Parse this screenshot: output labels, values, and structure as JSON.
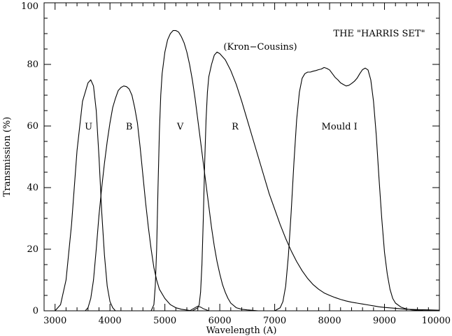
{
  "chart_data": {
    "type": "line",
    "title": "",
    "xlabel": "Wavelength (A)",
    "ylabel": "Transmission (%)",
    "xlim": [
      2800,
      10000
    ],
    "ylim": [
      0,
      100
    ],
    "x_ticks": [
      3000,
      4000,
      5000,
      6000,
      7000,
      8000,
      9000,
      10000
    ],
    "y_ticks": [
      0,
      20,
      40,
      60,
      80,
      100
    ],
    "grid": false,
    "annotations": [
      {
        "text": "THE \"HARRIS SET\""
      },
      {
        "text": "(Kron−Cousins)"
      }
    ],
    "series": [
      {
        "name": "U",
        "points": [
          [
            3000,
            0
          ],
          [
            3100,
            2
          ],
          [
            3200,
            10
          ],
          [
            3300,
            28
          ],
          [
            3400,
            52
          ],
          [
            3500,
            68
          ],
          [
            3600,
            74
          ],
          [
            3650,
            75
          ],
          [
            3700,
            73
          ],
          [
            3750,
            65
          ],
          [
            3800,
            50
          ],
          [
            3850,
            32
          ],
          [
            3900,
            18
          ],
          [
            3950,
            8
          ],
          [
            4000,
            3
          ],
          [
            4050,
            1
          ],
          [
            4100,
            0
          ]
        ]
      },
      {
        "name": "B",
        "points": [
          [
            3550,
            0
          ],
          [
            3600,
            1
          ],
          [
            3650,
            4
          ],
          [
            3700,
            10
          ],
          [
            3750,
            20
          ],
          [
            3800,
            31
          ],
          [
            3850,
            40
          ],
          [
            3900,
            48
          ],
          [
            3950,
            55
          ],
          [
            4000,
            61
          ],
          [
            4050,
            66
          ],
          [
            4100,
            69
          ],
          [
            4150,
            71.5
          ],
          [
            4200,
            72.5
          ],
          [
            4250,
            73
          ],
          [
            4300,
            72.8
          ],
          [
            4350,
            72
          ],
          [
            4400,
            70
          ],
          [
            4450,
            66
          ],
          [
            4500,
            61
          ],
          [
            4550,
            53
          ],
          [
            4600,
            44
          ],
          [
            4650,
            35
          ],
          [
            4700,
            27
          ],
          [
            4750,
            20
          ],
          [
            4800,
            14
          ],
          [
            4850,
            10
          ],
          [
            4900,
            7
          ],
          [
            5000,
            4
          ],
          [
            5100,
            2
          ],
          [
            5200,
            1
          ],
          [
            5300,
            0.5
          ],
          [
            5500,
            0
          ]
        ]
      },
      {
        "name": "V",
        "points": [
          [
            4750,
            0
          ],
          [
            4800,
            2
          ],
          [
            4825,
            8
          ],
          [
            4850,
            20
          ],
          [
            4875,
            40
          ],
          [
            4900,
            58
          ],
          [
            4925,
            70
          ],
          [
            4950,
            77
          ],
          [
            5000,
            84
          ],
          [
            5050,
            88
          ],
          [
            5100,
            90
          ],
          [
            5150,
            91
          ],
          [
            5200,
            91
          ],
          [
            5250,
            90.5
          ],
          [
            5300,
            89
          ],
          [
            5350,
            87
          ],
          [
            5400,
            84
          ],
          [
            5450,
            80
          ],
          [
            5500,
            75
          ],
          [
            5550,
            69
          ],
          [
            5600,
            62
          ],
          [
            5650,
            55
          ],
          [
            5700,
            48
          ],
          [
            5750,
            41
          ],
          [
            5800,
            34
          ],
          [
            5850,
            27
          ],
          [
            5900,
            21
          ],
          [
            5950,
            16
          ],
          [
            6000,
            12
          ],
          [
            6050,
            8.5
          ],
          [
            6100,
            6
          ],
          [
            6150,
            4
          ],
          [
            6200,
            2.5
          ],
          [
            6300,
            1
          ],
          [
            6400,
            0.5
          ],
          [
            6500,
            0.3
          ],
          [
            6700,
            0
          ]
        ]
      },
      {
        "name": "R",
        "points": [
          [
            5500,
            0
          ],
          [
            5550,
            0.5
          ],
          [
            5600,
            1
          ],
          [
            5625,
            2
          ],
          [
            5650,
            6
          ],
          [
            5675,
            15
          ],
          [
            5700,
            30
          ],
          [
            5725,
            48
          ],
          [
            5750,
            62
          ],
          [
            5775,
            71
          ],
          [
            5800,
            76
          ],
          [
            5850,
            80
          ],
          [
            5900,
            83
          ],
          [
            5950,
            84
          ],
          [
            6000,
            83.5
          ],
          [
            6100,
            81.5
          ],
          [
            6200,
            78
          ],
          [
            6300,
            73.5
          ],
          [
            6400,
            68
          ],
          [
            6500,
            62
          ],
          [
            6600,
            56
          ],
          [
            6700,
            50
          ],
          [
            6800,
            44
          ],
          [
            6900,
            38
          ],
          [
            7000,
            33
          ],
          [
            7100,
            28
          ],
          [
            7200,
            23.5
          ],
          [
            7300,
            19.5
          ],
          [
            7400,
            16
          ],
          [
            7500,
            13
          ],
          [
            7600,
            10.5
          ],
          [
            7700,
            8.5
          ],
          [
            7800,
            7
          ],
          [
            7900,
            5.8
          ],
          [
            8000,
            5
          ],
          [
            8100,
            4.3
          ],
          [
            8200,
            3.7
          ],
          [
            8300,
            3.2
          ],
          [
            8400,
            2.8
          ],
          [
            8500,
            2.5
          ],
          [
            8600,
            2.2
          ],
          [
            8700,
            1.9
          ],
          [
            8800,
            1.6
          ],
          [
            8900,
            1.3
          ],
          [
            9000,
            1.1
          ],
          [
            9200,
            0.8
          ],
          [
            9400,
            0.5
          ],
          [
            9600,
            0.4
          ],
          [
            9800,
            0.3
          ],
          [
            10000,
            0.2
          ]
        ]
      },
      {
        "name": "Mould I",
        "points": [
          [
            7000,
            0
          ],
          [
            7100,
            1
          ],
          [
            7150,
            3
          ],
          [
            7200,
            8
          ],
          [
            7250,
            18
          ],
          [
            7300,
            32
          ],
          [
            7350,
            48
          ],
          [
            7400,
            62
          ],
          [
            7450,
            71
          ],
          [
            7500,
            75.5
          ],
          [
            7550,
            77
          ],
          [
            7600,
            77.5
          ],
          [
            7650,
            77.5
          ],
          [
            7700,
            77.8
          ],
          [
            7750,
            78
          ],
          [
            7800,
            78.3
          ],
          [
            7850,
            78.5
          ],
          [
            7900,
            79
          ],
          [
            7950,
            78.7
          ],
          [
            8000,
            78.2
          ],
          [
            8050,
            77
          ],
          [
            8100,
            75.8
          ],
          [
            8150,
            75
          ],
          [
            8200,
            74
          ],
          [
            8250,
            73.5
          ],
          [
            8300,
            73
          ],
          [
            8350,
            73.2
          ],
          [
            8400,
            73.8
          ],
          [
            8450,
            74.5
          ],
          [
            8500,
            75.5
          ],
          [
            8550,
            77
          ],
          [
            8600,
            78.3
          ],
          [
            8650,
            78.8
          ],
          [
            8700,
            78.2
          ],
          [
            8750,
            75
          ],
          [
            8800,
            68
          ],
          [
            8850,
            57
          ],
          [
            8900,
            43
          ],
          [
            8950,
            30
          ],
          [
            9000,
            19
          ],
          [
            9050,
            12
          ],
          [
            9100,
            7
          ],
          [
            9150,
            4
          ],
          [
            9200,
            2.5
          ],
          [
            9300,
            1.2
          ],
          [
            9400,
            0.6
          ],
          [
            9500,
            0.3
          ],
          [
            9700,
            0.1
          ],
          [
            9900,
            0.05
          ],
          [
            10000,
            0
          ]
        ]
      }
    ],
    "series_labels": [
      {
        "series": "U",
        "text": "U",
        "x": 3610,
        "y": 60
      },
      {
        "series": "B",
        "text": "B",
        "x": 4350,
        "y": 60
      },
      {
        "series": "V",
        "text": "V",
        "x": 5280,
        "y": 60
      },
      {
        "series": "R",
        "text": "R",
        "x": 6280,
        "y": 60
      },
      {
        "series": "Mould I",
        "text": "Mould I",
        "x": 8180,
        "y": 60
      }
    ],
    "minor_curves": [
      {
        "series": "V-red-leak",
        "points": [
          [
            5450,
            0
          ],
          [
            5500,
            0.5
          ],
          [
            5550,
            1
          ],
          [
            5600,
            1.5
          ],
          [
            5650,
            1.2
          ],
          [
            5700,
            0.7
          ],
          [
            5800,
            0
          ]
        ]
      }
    ]
  }
}
